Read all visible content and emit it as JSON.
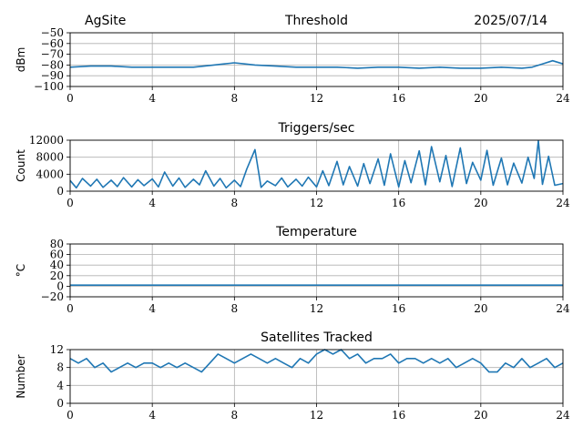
{
  "header": {
    "site": "AgSite",
    "date": "2025/07/14"
  },
  "colors": {
    "series": "#1f77b4",
    "grid": "#b0b0b0"
  },
  "chart_data": [
    {
      "type": "line",
      "title": "Threshold",
      "ylabel": "dBm",
      "xlim": [
        0,
        24
      ],
      "ylim": [
        -100,
        -50
      ],
      "xticks": [
        0,
        4,
        8,
        12,
        16,
        20,
        24
      ],
      "yticks": [
        -100,
        -90,
        -80,
        -70,
        -60,
        -50
      ],
      "grid": true,
      "series": [
        {
          "x": [
            0,
            1,
            2,
            3,
            4,
            5,
            6,
            7,
            7.5,
            8,
            8.5,
            9,
            10,
            11,
            12,
            13,
            14,
            15,
            16,
            17,
            18,
            19,
            20,
            21,
            22,
            22.5,
            23,
            23.5,
            24
          ],
          "values": [
            -82,
            -81,
            -81,
            -82,
            -82,
            -82,
            -82,
            -80,
            -79,
            -78,
            -79,
            -80,
            -81,
            -82,
            -82,
            -82,
            -83,
            -82,
            -82,
            -83,
            -82,
            -83,
            -83,
            -82,
            -83,
            -82,
            -79,
            -76,
            -79
          ]
        }
      ]
    },
    {
      "type": "line",
      "title": "Triggers/sec",
      "ylabel": "Count",
      "xlim": [
        0,
        24
      ],
      "ylim": [
        0,
        12000
      ],
      "xticks": [
        0,
        4,
        8,
        12,
        16,
        20,
        24
      ],
      "yticks": [
        0,
        4000,
        8000,
        12000
      ],
      "grid": true,
      "series": [
        {
          "x": [
            0,
            0.3,
            0.6,
            1,
            1.3,
            1.6,
            2,
            2.3,
            2.6,
            3,
            3.3,
            3.6,
            4,
            4.3,
            4.6,
            5,
            5.3,
            5.6,
            6,
            6.3,
            6.6,
            7,
            7.3,
            7.6,
            8,
            8.3,
            8.6,
            9,
            9.3,
            9.6,
            10,
            10.3,
            10.6,
            11,
            11.3,
            11.6,
            12,
            12.3,
            12.6,
            13,
            13.3,
            13.6,
            14,
            14.3,
            14.6,
            15,
            15.3,
            15.6,
            16,
            16.3,
            16.6,
            17,
            17.3,
            17.6,
            18,
            18.3,
            18.6,
            19,
            19.3,
            19.6,
            20,
            20.3,
            20.6,
            21,
            21.3,
            21.6,
            22,
            22.3,
            22.6,
            22.8,
            23,
            23.3,
            23.6,
            24
          ],
          "values": [
            2500,
            800,
            3000,
            1200,
            2800,
            900,
            2600,
            1100,
            3200,
            1000,
            2700,
            1300,
            2900,
            1000,
            4500,
            1200,
            3100,
            900,
            2800,
            1500,
            4800,
            1200,
            3000,
            800,
            2600,
            1100,
            5200,
            9800,
            900,
            2400,
            1300,
            3100,
            1000,
            2800,
            1200,
            3300,
            1000,
            4800,
            1300,
            7000,
            1500,
            5800,
            1200,
            6500,
            1800,
            7600,
            1400,
            8800,
            1000,
            7200,
            2000,
            9500,
            1500,
            10500,
            2200,
            8400,
            1100,
            10200,
            1800,
            6800,
            2600,
            9600,
            1400,
            7800,
            1500,
            6600,
            1900,
            8000,
            3000,
            11900,
            1600,
            8200,
            1400,
            1800
          ]
        }
      ]
    },
    {
      "type": "line",
      "title": "Temperature",
      "ylabel": "°C",
      "xlim": [
        0,
        24
      ],
      "ylim": [
        -20,
        80
      ],
      "xticks": [
        0,
        4,
        8,
        12,
        16,
        20,
        24
      ],
      "yticks": [
        -20,
        0,
        20,
        40,
        60,
        80
      ],
      "grid": true,
      "series": [
        {
          "x": [
            0,
            24
          ],
          "values": [
            2,
            2
          ]
        }
      ]
    },
    {
      "type": "line",
      "title": "Satellites Tracked",
      "ylabel": "Number",
      "xlim": [
        0,
        24
      ],
      "ylim": [
        0,
        12
      ],
      "xticks": [
        0,
        4,
        8,
        12,
        16,
        20,
        24
      ],
      "yticks": [
        0,
        4,
        8,
        12
      ],
      "grid": true,
      "series": [
        {
          "x": [
            0,
            0.4,
            0.8,
            1.2,
            1.6,
            2,
            2.4,
            2.8,
            3.2,
            3.6,
            4,
            4.4,
            4.8,
            5.2,
            5.6,
            6,
            6.4,
            6.8,
            7.2,
            7.6,
            8,
            8.4,
            8.8,
            9.2,
            9.6,
            10,
            10.4,
            10.8,
            11.2,
            11.6,
            12,
            12.4,
            12.8,
            13.2,
            13.6,
            14,
            14.4,
            14.8,
            15.2,
            15.6,
            16,
            16.4,
            16.8,
            17.2,
            17.6,
            18,
            18.4,
            18.8,
            19.2,
            19.6,
            20,
            20.4,
            20.8,
            21.2,
            21.6,
            22,
            22.4,
            22.8,
            23.2,
            23.6,
            24
          ],
          "values": [
            10,
            9,
            10,
            8,
            9,
            7,
            8,
            9,
            8,
            9,
            9,
            8,
            9,
            8,
            9,
            8,
            7,
            9,
            11,
            10,
            9,
            10,
            11,
            10,
            9,
            10,
            9,
            8,
            10,
            9,
            11,
            12,
            11,
            12,
            10,
            11,
            9,
            10,
            10,
            11,
            9,
            10,
            10,
            9,
            10,
            9,
            10,
            8,
            9,
            10,
            9,
            7,
            7,
            9,
            8,
            10,
            8,
            9,
            10,
            8,
            9
          ]
        }
      ]
    }
  ]
}
